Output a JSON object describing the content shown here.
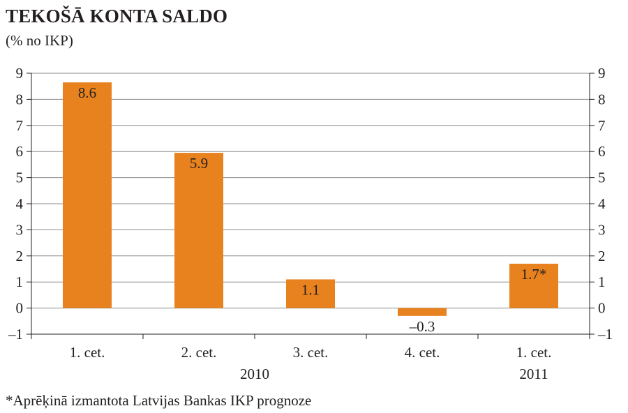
{
  "title": "TEKOŠĀ KONTA SALDO",
  "subtitle": "(% no IKP)",
  "footnote": "*Aprēķinā izmantota Latvijas Bankas IKP prognoze",
  "colors": {
    "bar": "#e8821e",
    "grid": "#8a8a8a",
    "axis": "#231f20"
  },
  "chart_data": {
    "type": "bar",
    "title": "TEKOŠĀ KONTA SALDO",
    "subtitle": "(% no IKP)",
    "categories": [
      "1. cet.",
      "2. cet.",
      "3. cet.",
      "4. cet.",
      "1. cet."
    ],
    "groups": [
      {
        "label": "2010",
        "from": 0,
        "to": 3
      },
      {
        "label": "2011",
        "from": 4,
        "to": 4
      }
    ],
    "values": [
      8.65,
      5.95,
      1.1,
      -0.3,
      1.7
    ],
    "data_labels": [
      "8.6",
      "5.9",
      "1.1",
      "–0.3",
      "1.7*"
    ],
    "ylim": [
      -1,
      9
    ],
    "yticks": [
      -1,
      0,
      1,
      2,
      3,
      4,
      5,
      6,
      7,
      8,
      9
    ],
    "ytick_labels": [
      "–1",
      "0",
      "1",
      "2",
      "3",
      "4",
      "5",
      "6",
      "7",
      "8",
      "9"
    ],
    "grid": true,
    "secondary_axis": true
  }
}
